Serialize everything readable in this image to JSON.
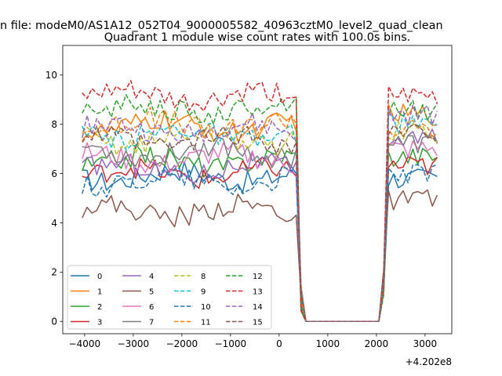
{
  "chart_data": {
    "type": "line",
    "suptitle": "n file: modeM0/AS1A12_052T04_9000005582_40963cztM0_level2_quad_clean",
    "title": "Quadrant 1 module wise count rates with 100.0s bins.",
    "xlabel": "",
    "ylabel": "",
    "x_offset_label": "+4.202e8",
    "xlim": [
      -4450,
      3550
    ],
    "ylim": [
      -0.5,
      11.2
    ],
    "xticks": [
      -4000,
      -3000,
      -2000,
      -1000,
      0,
      1000,
      2000,
      3000
    ],
    "xtick_labels": [
      "−4000",
      "−3000",
      "−2000",
      "−1000",
      "0",
      "1000",
      "2000",
      "3000"
    ],
    "yticks": [
      0,
      2,
      4,
      6,
      8,
      10
    ],
    "ytick_labels": [
      "0",
      "2",
      "4",
      "6",
      "8",
      "10"
    ],
    "legend_position": "lower-left",
    "x": {
      "start": -4050,
      "step": 100,
      "count": 74
    },
    "series": [
      {
        "name": "0",
        "color": "#1f77b4",
        "dash": "solid",
        "level1": 5.9,
        "level2": 5.8
      },
      {
        "name": "1",
        "color": "#ff7f0e",
        "dash": "solid",
        "level1": 7.9,
        "level2": 8.4
      },
      {
        "name": "2",
        "color": "#2ca02c",
        "dash": "solid",
        "level1": 6.5,
        "level2": 6.7
      },
      {
        "name": "3",
        "color": "#d62728",
        "dash": "solid",
        "level1": 6.0,
        "level2": 6.3
      },
      {
        "name": "4",
        "color": "#9467bd",
        "dash": "solid",
        "level1": 6.2,
        "level2": 7.4
      },
      {
        "name": "5",
        "color": "#8c564b",
        "dash": "solid",
        "level1": 4.5,
        "level2": 4.9
      },
      {
        "name": "6",
        "color": "#e377c2",
        "dash": "solid",
        "level1": 6.6,
        "level2": 7.0
      },
      {
        "name": "7",
        "color": "#7f7f7f",
        "dash": "solid",
        "level1": 6.9,
        "level2": 7.2
      },
      {
        "name": "8",
        "color": "#bcbd22",
        "dash": "dashed",
        "level1": 7.4,
        "level2": 7.7
      },
      {
        "name": "9",
        "color": "#17becf",
        "dash": "dashed",
        "level1": 7.6,
        "level2": 8.0
      },
      {
        "name": "10",
        "color": "#1f77b4",
        "dash": "dashed",
        "level1": 5.7,
        "level2": 6.0
      },
      {
        "name": "11",
        "color": "#ff7f0e",
        "dash": "dashed",
        "level1": 8.0,
        "level2": 7.8
      },
      {
        "name": "12",
        "color": "#2ca02c",
        "dash": "dashed",
        "level1": 8.6,
        "level2": 8.6
      },
      {
        "name": "13",
        "color": "#d62728",
        "dash": "dashed",
        "level1": 9.1,
        "level2": 9.1
      },
      {
        "name": "14",
        "color": "#9467bd",
        "dash": "dashed",
        "level1": 7.8,
        "level2": 8.4
      },
      {
        "name": "15",
        "color": "#8c564b",
        "dash": "dashed",
        "level1": 7.3,
        "level2": 7.6
      }
    ]
  }
}
